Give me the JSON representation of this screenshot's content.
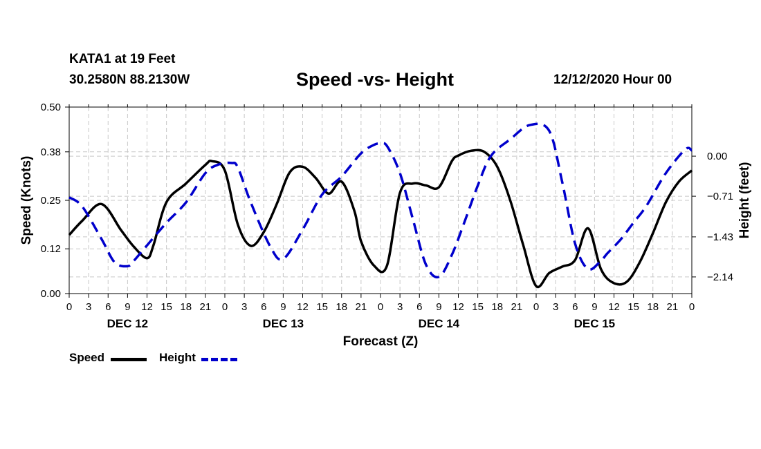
{
  "header": {
    "station": "KATA1 at 19 Feet",
    "coords": "30.2580N 88.2130W",
    "title": "Speed -vs- Height",
    "datetime": "12/12/2020 Hour 00"
  },
  "legend": {
    "speed_label": "Speed",
    "height_label": "Height"
  },
  "colors": {
    "speed": "#000000",
    "height": "#0000cc",
    "grid": "#c8c8c8"
  },
  "chart_data": {
    "type": "line",
    "title": "Speed -vs- Height",
    "xlabel": "Forecast (Z)",
    "ylabel_left": "Speed (Knots)",
    "ylabel_right": "Height (feet)",
    "x_range_hours": [
      0,
      96
    ],
    "x_tick_labels": [
      "0",
      "3",
      "6",
      "9",
      "12",
      "15",
      "18",
      "21",
      "0",
      "3",
      "6",
      "9",
      "12",
      "15",
      "18",
      "21",
      "0",
      "3",
      "6",
      "9",
      "12",
      "15",
      "18",
      "21",
      "0",
      "3",
      "6",
      "9",
      "12",
      "15",
      "18",
      "21",
      "0"
    ],
    "day_labels": [
      {
        "label": "DEC 12",
        "hour": 9
      },
      {
        "label": "DEC 13",
        "hour": 33
      },
      {
        "label": "DEC 14",
        "hour": 57
      },
      {
        "label": "DEC 15",
        "hour": 81
      }
    ],
    "y_left": {
      "min": 0.0,
      "max": 0.5,
      "ticks": [
        0.0,
        0.12,
        0.25,
        0.38,
        0.5
      ],
      "tick_labels": [
        "0.00",
        "0.12",
        "0.25",
        "0.38",
        "0.50"
      ]
    },
    "y_right": {
      "min": -2.435,
      "max": 0.87,
      "ticks": [
        -2.14,
        -1.43,
        -0.71,
        0.0
      ],
      "tick_labels": [
        "−2.14",
        "−1.43",
        "−0.71",
        "0.00"
      ]
    },
    "grid": true,
    "series": [
      {
        "name": "Speed",
        "axis": "left",
        "style": "solid",
        "hours": [
          0,
          2,
          5,
          8,
          10,
          12,
          13,
          15,
          18,
          21,
          22,
          24,
          26,
          28,
          30,
          32,
          34,
          36,
          38,
          40,
          42,
          44,
          45,
          47,
          49,
          51,
          53,
          55,
          57,
          59,
          60,
          62,
          64,
          66,
          68,
          70,
          72,
          74,
          76,
          78,
          80,
          82,
          84,
          86,
          88,
          90,
          92,
          94,
          96
        ],
        "values": [
          0.157,
          0.195,
          0.24,
          0.17,
          0.125,
          0.095,
          0.13,
          0.245,
          0.295,
          0.345,
          0.355,
          0.33,
          0.185,
          0.128,
          0.165,
          0.24,
          0.325,
          0.34,
          0.31,
          0.268,
          0.3,
          0.22,
          0.14,
          0.075,
          0.075,
          0.27,
          0.295,
          0.29,
          0.285,
          0.355,
          0.37,
          0.383,
          0.38,
          0.34,
          0.25,
          0.13,
          0.02,
          0.055,
          0.072,
          0.09,
          0.175,
          0.065,
          0.028,
          0.032,
          0.085,
          0.162,
          0.245,
          0.3,
          0.33
        ]
      },
      {
        "name": "Height",
        "axis": "right",
        "style": "dashed",
        "hours": [
          0,
          2,
          5,
          7,
          9,
          10,
          12,
          15,
          18,
          21,
          23,
          25,
          26,
          28,
          31,
          33,
          36,
          39,
          42,
          45,
          47,
          48,
          49,
          51,
          53,
          55,
          57,
          59,
          61,
          63,
          65,
          68,
          71,
          74,
          76,
          78,
          80,
          82,
          83,
          85,
          87,
          89,
          92,
          95,
          96
        ],
        "values": [
          -0.73,
          -0.89,
          -1.47,
          -1.88,
          -1.95,
          -1.85,
          -1.58,
          -1.18,
          -0.82,
          -0.3,
          -0.15,
          -0.12,
          -0.2,
          -0.82,
          -1.6,
          -1.82,
          -1.3,
          -0.68,
          -0.36,
          0.05,
          0.2,
          0.22,
          0.18,
          -0.3,
          -1.12,
          -1.92,
          -2.14,
          -1.75,
          -1.15,
          -0.52,
          0.0,
          0.3,
          0.55,
          0.45,
          -0.45,
          -1.55,
          -2.0,
          -1.85,
          -1.72,
          -1.48,
          -1.18,
          -0.88,
          -0.3,
          0.12,
          0.1
        ]
      }
    ]
  }
}
